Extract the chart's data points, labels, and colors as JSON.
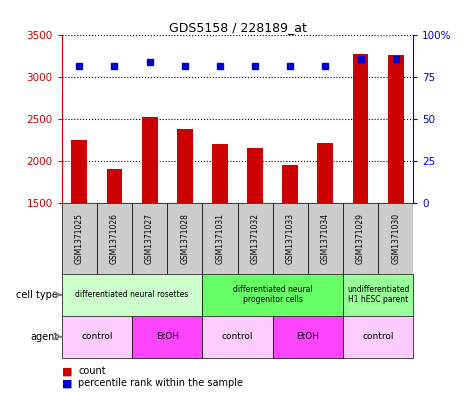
{
  "title": "GDS5158 / 228189_at",
  "samples": [
    "GSM1371025",
    "GSM1371026",
    "GSM1371027",
    "GSM1371028",
    "GSM1371031",
    "GSM1371032",
    "GSM1371033",
    "GSM1371034",
    "GSM1371029",
    "GSM1371030"
  ],
  "counts": [
    2250,
    1900,
    2520,
    2380,
    2200,
    2160,
    1950,
    2210,
    3280,
    3260
  ],
  "percentiles": [
    82,
    82,
    84,
    82,
    82,
    82,
    82,
    82,
    86,
    86
  ],
  "ylim_left": [
    1500,
    3500
  ],
  "ylim_right": [
    0,
    100
  ],
  "yticks_left": [
    1500,
    2000,
    2500,
    3000,
    3500
  ],
  "yticks_right": [
    0,
    25,
    50,
    75,
    100
  ],
  "ytick_right_labels": [
    "0",
    "25",
    "50",
    "75",
    "100%"
  ],
  "bar_color": "#cc0000",
  "dot_color": "#0000cc",
  "cell_type_groups": [
    {
      "label": "differentiated neural rosettes",
      "start": 0,
      "end": 4,
      "color": "#ccffcc"
    },
    {
      "label": "differentiated neural\nprogenitor cells",
      "start": 4,
      "end": 8,
      "color": "#66ff66"
    },
    {
      "label": "undifferentiated\nH1 hESC parent",
      "start": 8,
      "end": 10,
      "color": "#99ff99"
    }
  ],
  "agent_groups": [
    {
      "label": "control",
      "start": 0,
      "end": 2,
      "color": "#ffccff"
    },
    {
      "label": "EtOH",
      "start": 2,
      "end": 4,
      "color": "#ff44ff"
    },
    {
      "label": "control",
      "start": 4,
      "end": 6,
      "color": "#ffccff"
    },
    {
      "label": "EtOH",
      "start": 6,
      "end": 8,
      "color": "#ff44ff"
    },
    {
      "label": "control",
      "start": 8,
      "end": 10,
      "color": "#ffccff"
    }
  ],
  "cell_type_label": "cell type",
  "agent_label": "agent",
  "legend_count_label": "count",
  "legend_percentile_label": "percentile rank within the sample",
  "sample_bg_color": "#cccccc",
  "sample_border_color": "#000000",
  "bar_width": 0.45
}
